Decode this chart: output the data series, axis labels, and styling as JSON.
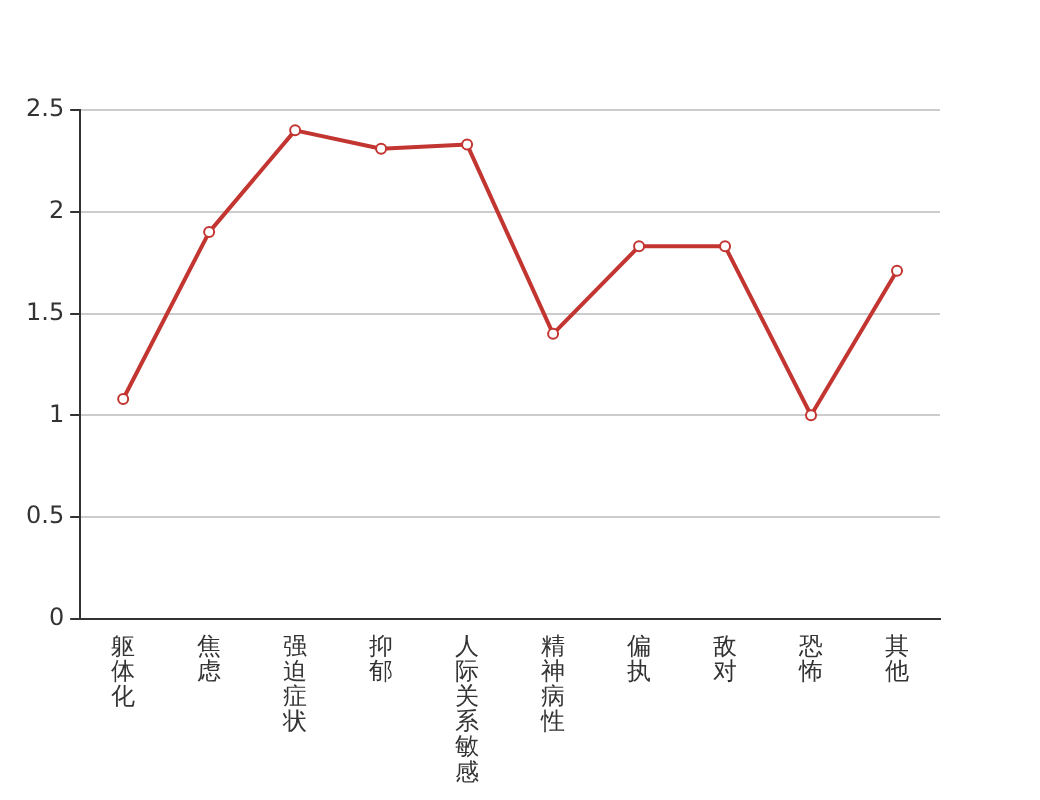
{
  "chart_data": {
    "type": "line",
    "categories": [
      "躯体化",
      "焦虑",
      "强迫症状",
      "抑郁",
      "人际关系敏感",
      "精神病性",
      "偏执",
      "敌对",
      "恐怖",
      "其他"
    ],
    "series": [
      {
        "color": "#c23531",
        "values": [
          1.08,
          1.9,
          2.4,
          2.31,
          2.33,
          1.4,
          1.83,
          1.83,
          1.0,
          1.71
        ]
      }
    ],
    "ylim": [
      0,
      2.5
    ],
    "yticks": [
      0,
      0.5,
      1,
      1.5,
      2,
      2.5
    ],
    "grid": "y",
    "legend": false,
    "marker": "circle",
    "line_style": "solid"
  }
}
